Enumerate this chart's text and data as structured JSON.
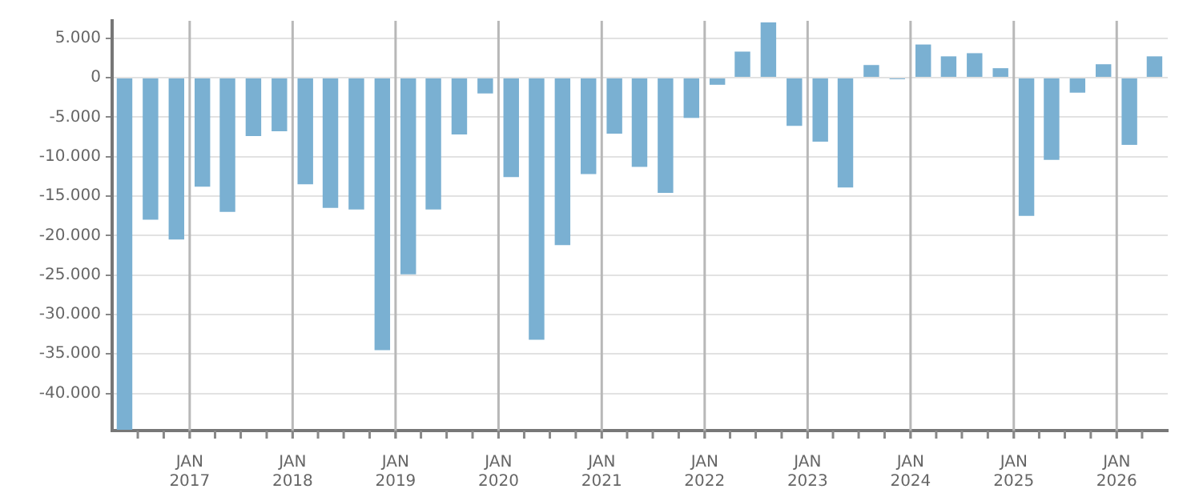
{
  "chart_data": {
    "type": "bar",
    "color": "#7ab0d2",
    "x": [
      "2016-05-15",
      "2016-08-15",
      "2016-11-15",
      "2017-02-15",
      "2017-05-15",
      "2017-08-15",
      "2017-11-15",
      "2018-02-15",
      "2018-05-15",
      "2018-08-15",
      "2018-11-15",
      "2019-02-15",
      "2019-05-15",
      "2019-08-15",
      "2019-11-15",
      "2020-02-15",
      "2020-05-15",
      "2020-08-15",
      "2020-11-15",
      "2021-02-15",
      "2021-05-15",
      "2021-08-15",
      "2021-11-15",
      "2022-02-15",
      "2022-05-15",
      "2022-08-15",
      "2022-11-15",
      "2023-02-15",
      "2023-05-15",
      "2023-08-15",
      "2023-11-15",
      "2024-02-15",
      "2024-05-15",
      "2024-08-15",
      "2024-11-15",
      "2025-02-15",
      "2025-05-15",
      "2025-08-15",
      "2025-11-15",
      "2026-02-15",
      "2026-05-15"
    ],
    "values": [
      -44600,
      -18000,
      -20500,
      -13800,
      -17000,
      -7400,
      -6800,
      -13500,
      -16500,
      -16700,
      -34500,
      -24900,
      -16700,
      -7200,
      -2000,
      -12600,
      -33200,
      -21200,
      -12200,
      -7100,
      -11300,
      -14600,
      -5100,
      -900,
      3300,
      7000,
      -6100,
      -8100,
      -13900,
      1600,
      -200,
      4200,
      2700,
      3100,
      1200,
      -17500,
      -10400,
      -1900,
      1700,
      -8500,
      2700
    ],
    "xlim": [
      "2016-04-01",
      "2026-07-01"
    ],
    "xticks": [
      {
        "value": "2016-07-01",
        "label": null
      },
      {
        "value": "2016-10-01",
        "label": null
      },
      {
        "value": "2017-01-01",
        "label": "JAN\n2017"
      },
      {
        "value": "2017-04-01",
        "label": null
      },
      {
        "value": "2017-07-01",
        "label": null
      },
      {
        "value": "2017-10-01",
        "label": null
      },
      {
        "value": "2018-01-01",
        "label": "JAN\n2018"
      },
      {
        "value": "2018-04-01",
        "label": null
      },
      {
        "value": "2018-07-01",
        "label": null
      },
      {
        "value": "2018-10-01",
        "label": null
      },
      {
        "value": "2019-01-01",
        "label": "JAN\n2019"
      },
      {
        "value": "2019-04-01",
        "label": null
      },
      {
        "value": "2019-07-01",
        "label": null
      },
      {
        "value": "2019-10-01",
        "label": null
      },
      {
        "value": "2020-01-01",
        "label": "JAN\n2020"
      },
      {
        "value": "2020-04-01",
        "label": null
      },
      {
        "value": "2020-07-01",
        "label": null
      },
      {
        "value": "2020-10-01",
        "label": null
      },
      {
        "value": "2021-01-01",
        "label": "JAN\n2021"
      },
      {
        "value": "2021-04-01",
        "label": null
      },
      {
        "value": "2021-07-01",
        "label": null
      },
      {
        "value": "2021-10-01",
        "label": null
      },
      {
        "value": "2022-01-01",
        "label": "JAN\n2022"
      },
      {
        "value": "2022-04-01",
        "label": null
      },
      {
        "value": "2022-07-01",
        "label": null
      },
      {
        "value": "2022-10-01",
        "label": null
      },
      {
        "value": "2023-01-01",
        "label": "JAN\n2023"
      },
      {
        "value": "2023-04-01",
        "label": null
      },
      {
        "value": "2023-07-01",
        "label": null
      },
      {
        "value": "2023-10-01",
        "label": null
      },
      {
        "value": "2024-01-01",
        "label": "JAN\n2024"
      },
      {
        "value": "2024-04-01",
        "label": null
      },
      {
        "value": "2024-07-01",
        "label": null
      },
      {
        "value": "2024-10-01",
        "label": null
      },
      {
        "value": "2025-01-01",
        "label": "JAN\n2025"
      },
      {
        "value": "2025-04-01",
        "label": null
      },
      {
        "value": "2025-07-01",
        "label": null
      },
      {
        "value": "2025-10-01",
        "label": null
      },
      {
        "value": "2026-01-01",
        "label": "JAN\n2026"
      },
      {
        "value": "2026-04-01",
        "label": null
      }
    ],
    "ylim": [
      -44700,
      7200
    ],
    "yticks": [
      {
        "value": -40000,
        "label": "-40.000"
      },
      {
        "value": -35000,
        "label": "-35.000"
      },
      {
        "value": -30000,
        "label": "-30.000"
      },
      {
        "value": -25000,
        "label": "-25.000"
      },
      {
        "value": -20000,
        "label": "-20.000"
      },
      {
        "value": -15000,
        "label": "-15.000"
      },
      {
        "value": -10000,
        "label": "-10.000"
      },
      {
        "value": -5000,
        "label": "-5.000"
      },
      {
        "value": 0,
        "label": "0"
      },
      {
        "value": 5000,
        "label": "5.000"
      }
    ],
    "grid": true
  }
}
